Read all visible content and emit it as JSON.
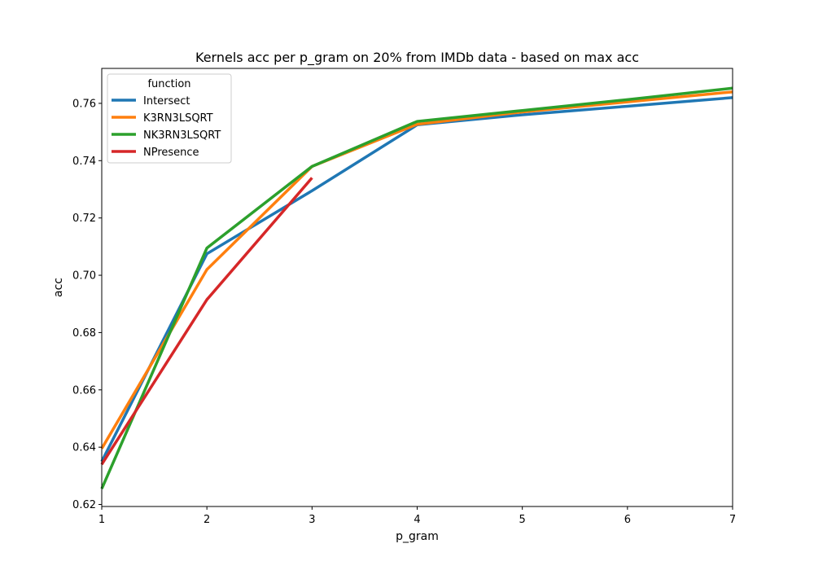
{
  "chart_data": {
    "type": "line",
    "title": "Kernels acc per p_gram on 20% from IMDb data - based on max acc",
    "xlabel": "p_gram",
    "ylabel": "acc",
    "xlim": [
      1,
      7
    ],
    "ylim": [
      0.6193,
      0.7722
    ],
    "x_ticks": [
      1,
      2,
      3,
      4,
      5,
      6,
      7
    ],
    "y_ticks": [
      0.62,
      0.64,
      0.66,
      0.68,
      0.7,
      0.72,
      0.74,
      0.76
    ],
    "y_tick_labels": [
      "0.62",
      "0.64",
      "0.66",
      "0.68",
      "0.70",
      "0.72",
      "0.74",
      "0.76"
    ],
    "grid": false,
    "legend": {
      "title": "function",
      "placement": "upper-left"
    },
    "series": [
      {
        "name": "Intersect",
        "color": "#1f77b4",
        "x": [
          1,
          2,
          3,
          4,
          5,
          6,
          7
        ],
        "y": [
          0.635,
          0.7075,
          0.7295,
          0.7525,
          0.756,
          0.759,
          0.762
        ]
      },
      {
        "name": "K3RN3LSQRT",
        "color": "#ff7f0e",
        "x": [
          1,
          2,
          3,
          4,
          5,
          6,
          7
        ],
        "y": [
          0.6395,
          0.702,
          0.738,
          0.7527,
          0.757,
          0.7605,
          0.764
        ]
      },
      {
        "name": "NK3RN3LSQRT",
        "color": "#2ca02c",
        "x": [
          1,
          2,
          3,
          4,
          5,
          6,
          7
        ],
        "y": [
          0.6255,
          0.7095,
          0.738,
          0.7537,
          0.7575,
          0.7613,
          0.7653
        ]
      },
      {
        "name": "NPresence",
        "color": "#d62728",
        "x": [
          1,
          2,
          3
        ],
        "y": [
          0.634,
          0.6915,
          0.734
        ]
      }
    ]
  }
}
